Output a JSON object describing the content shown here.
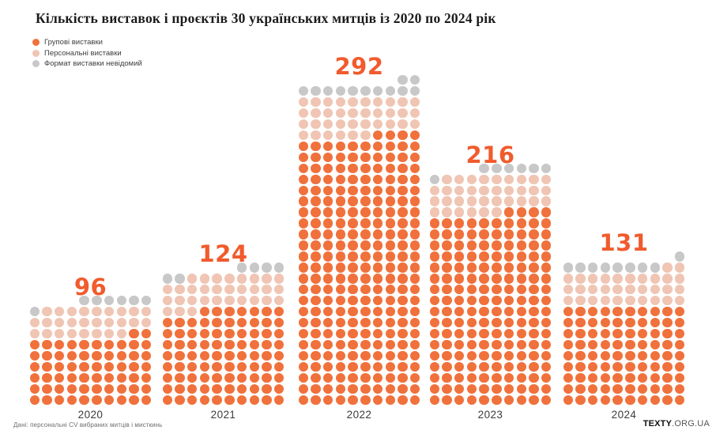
{
  "title": "Кількість виставок і проєктів 30 українських митців із 2020 по 2024 рік",
  "legend": {
    "items": [
      {
        "label": "Групові виставки"
      },
      {
        "label": "Персональні виставки"
      },
      {
        "label": "Формат виставки невідомий"
      }
    ]
  },
  "colors": {
    "group_exhibitions": "#F0713C",
    "personal_exhibitions": "#F0C5B3",
    "unknown_format": "#C8C8C8",
    "count_label": "#F15B2D",
    "title_text": "#1B1B1B"
  },
  "chart_data": {
    "type": "bar",
    "variant": "waffle/pictogram unit chart: 1 dot = 1 exhibition, 10 dots per row, stacked bottom-up, each row fills right-to-left",
    "title": "Кількість виставок і проєктів 30 українських митців із 2020 по 2024 рік",
    "categories": [
      "2020",
      "2021",
      "2022",
      "2023",
      "2024"
    ],
    "totals": [
      96,
      124,
      292,
      216,
      131
    ],
    "series": [
      {
        "name": "Групові виставки",
        "key": "group-exhibitions",
        "color": "#F0713C",
        "values": [
          62,
          87,
          244,
          174,
          90
        ]
      },
      {
        "name": "Персональні виставки",
        "key": "personal-exhibitions",
        "color": "#F0C5B3",
        "values": [
          27,
          31,
          36,
          35,
          32
        ]
      },
      {
        "name": "Формат виставки невідомий",
        "key": "unknown-format",
        "color": "#C8C8C8",
        "values": [
          7,
          6,
          12,
          7,
          9
        ]
      }
    ],
    "columns_per_row": 10,
    "legend_position": "top-left",
    "grid": false,
    "xlabel": "",
    "ylabel": ""
  },
  "footer": {
    "source": "Дані: персональні CV вибраних митців і мисткинь",
    "brand_bold": "TEXTY",
    "brand_rest": ".ORG.UA"
  }
}
